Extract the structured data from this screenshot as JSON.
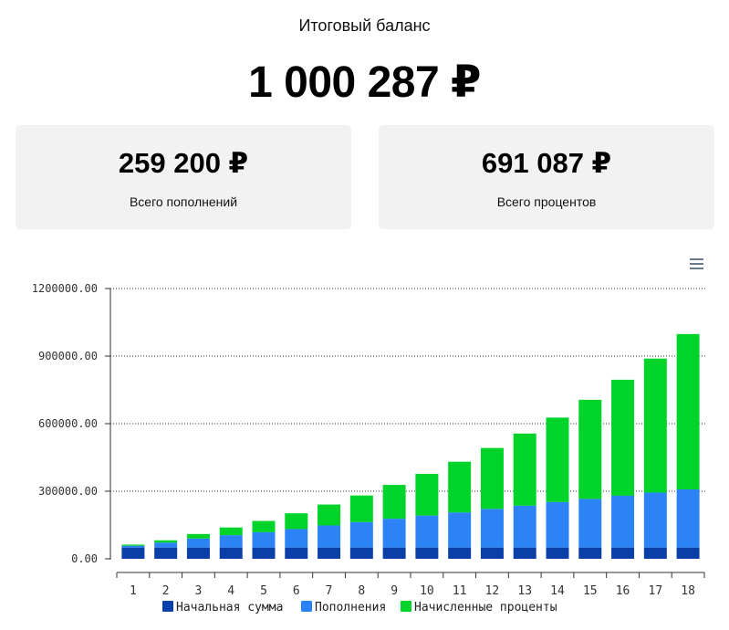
{
  "summary": {
    "title": "Итоговый баланс",
    "total": "1 000 287 ₽",
    "deposits_amount": "259 200 ₽",
    "deposits_label": "Всего пополнений",
    "interest_amount": "691 087 ₽",
    "interest_label": "Всего процентов"
  },
  "menu_icon": "hamburger-menu-icon",
  "chart_data": {
    "type": "bar",
    "stacked": true,
    "categories": [
      "1",
      "2",
      "3",
      "4",
      "5",
      "6",
      "7",
      "8",
      "9",
      "10",
      "11",
      "12",
      "13",
      "14",
      "15",
      "16",
      "17",
      "18"
    ],
    "y_tick_labels": [
      "0.00",
      "300000.00",
      "600000.00",
      "900000.00",
      "1200000.00"
    ],
    "ylim": [
      0,
      1200000
    ],
    "grid": true,
    "legend_position": "bottom",
    "series": [
      {
        "name": "Начальная сумма",
        "color": "#0a3fa8",
        "values": [
          50000,
          50000,
          50000,
          50000,
          50000,
          50000,
          50000,
          50000,
          50000,
          50000,
          50000,
          50000,
          50000,
          50000,
          50000,
          50000,
          50000,
          50000
        ]
      },
      {
        "name": "Пополнения",
        "color": "#2b83f6",
        "values": [
          8000,
          22000,
          40000,
          55000,
          68000,
          82000,
          98000,
          113000,
          128000,
          142000,
          156000,
          172000,
          186000,
          202000,
          216000,
          230000,
          244000,
          258000
        ]
      },
      {
        "name": "Начисленные проценты",
        "color": "#00d42a",
        "values": [
          5000,
          10000,
          20000,
          34000,
          50000,
          70000,
          93000,
          118000,
          150000,
          185000,
          225000,
          270000,
          320000,
          375000,
          440000,
          515000,
          595000,
          690000
        ]
      }
    ]
  }
}
